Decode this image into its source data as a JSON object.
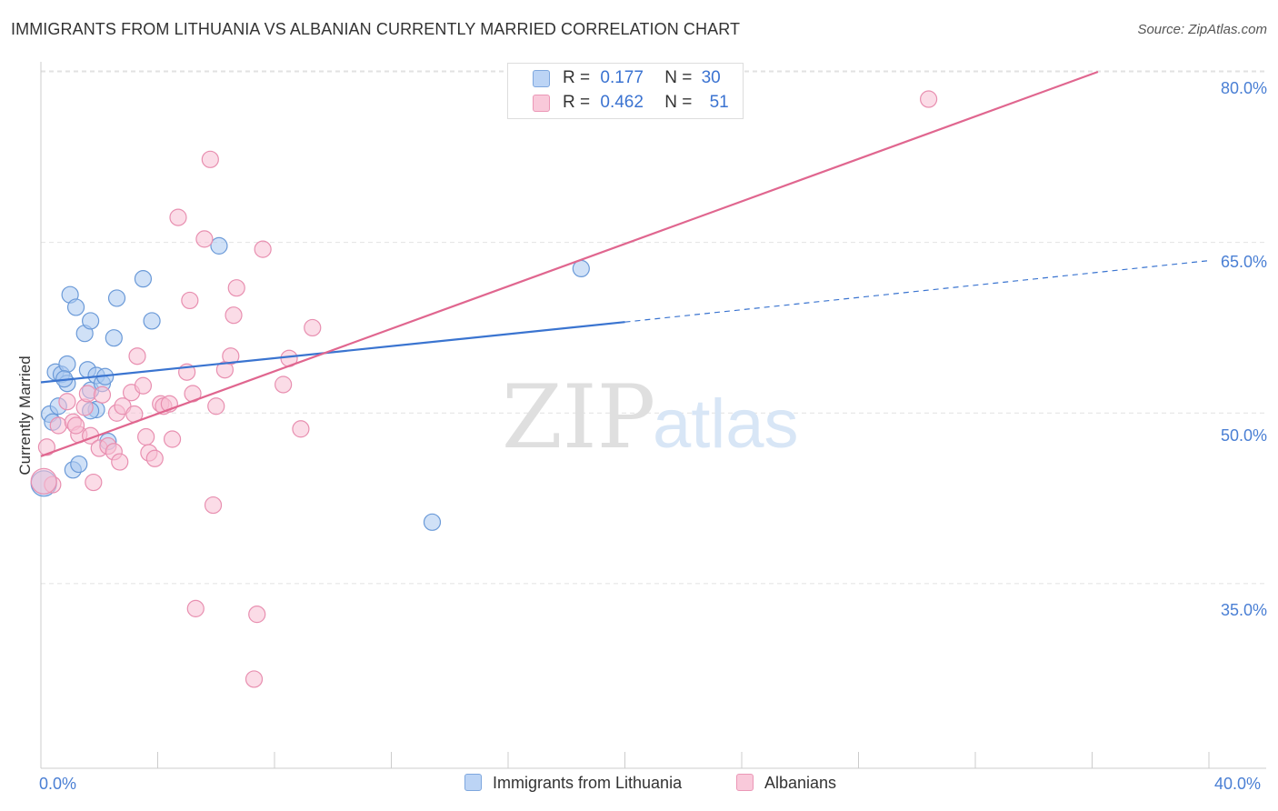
{
  "chart_data": {
    "type": "scatter",
    "title": "IMMIGRANTS FROM LITHUANIA VS ALBANIAN CURRENTLY MARRIED CORRELATION CHART",
    "source": "Source: ZipAtlas.com",
    "xlabel": "",
    "ylabel": "Currently Married",
    "xlim": [
      0,
      40
    ],
    "ylim": [
      20,
      82
    ],
    "x_tick_labels": [
      "0.0%",
      "40.0%"
    ],
    "y_ticks": [
      35,
      50,
      65,
      80
    ],
    "y_tick_labels": [
      "35.0%",
      "50.0%",
      "65.0%",
      "80.0%"
    ],
    "grid": true,
    "watermark": {
      "zip": "ZIP",
      "atlas": "atlas"
    },
    "legend_stats": [
      {
        "r_label": "R =",
        "r_value": "0.177",
        "n_label": "N =",
        "n_value": "30"
      },
      {
        "r_label": "R =",
        "r_value": "0.462",
        "n_label": "N =",
        "n_value": "51"
      }
    ],
    "series": [
      {
        "name": "Immigrants from Lithuania",
        "color": "#aac8f0",
        "stroke": "#6b9ad8",
        "line_color": "#3a74d0",
        "trend": {
          "x0": 0.0,
          "y0": 52.7,
          "x1": 20.0,
          "y1": 58.0,
          "dashed_to_x": 40.0,
          "dashed_to_y": 63.4
        },
        "points": [
          [
            0.3,
            49.9
          ],
          [
            0.6,
            50.6
          ],
          [
            0.4,
            49.2
          ],
          [
            0.5,
            53.6
          ],
          [
            0.7,
            53.4
          ],
          [
            0.9,
            54.3
          ],
          [
            0.9,
            52.6
          ],
          [
            0.8,
            53.0
          ],
          [
            1.0,
            60.4
          ],
          [
            1.2,
            59.3
          ],
          [
            1.5,
            57.0
          ],
          [
            1.7,
            58.1
          ],
          [
            1.6,
            53.8
          ],
          [
            1.7,
            52.0
          ],
          [
            1.9,
            53.3
          ],
          [
            2.1,
            52.6
          ],
          [
            2.2,
            53.2
          ],
          [
            2.5,
            56.6
          ],
          [
            2.6,
            60.1
          ],
          [
            3.5,
            61.8
          ],
          [
            3.8,
            58.1
          ],
          [
            1.1,
            45.0
          ],
          [
            1.3,
            45.5
          ],
          [
            1.9,
            50.3
          ],
          [
            1.7,
            50.2
          ],
          [
            2.3,
            47.5
          ],
          [
            6.1,
            64.7
          ],
          [
            0.1,
            43.8
          ],
          [
            13.4,
            40.4
          ],
          [
            18.5,
            62.7
          ]
        ]
      },
      {
        "name": "Albanians",
        "color": "#f7bfd3",
        "stroke": "#e88fb0",
        "line_color": "#e0668f",
        "trend": {
          "x0": 0.0,
          "y0": 46.2,
          "x1": 36.2,
          "y1": 80.0
        },
        "points": [
          [
            0.2,
            47.0
          ],
          [
            0.4,
            43.7
          ],
          [
            0.6,
            48.9
          ],
          [
            0.9,
            51.0
          ],
          [
            1.1,
            49.2
          ],
          [
            1.3,
            48.1
          ],
          [
            1.5,
            50.5
          ],
          [
            1.6,
            51.7
          ],
          [
            1.7,
            48.0
          ],
          [
            1.8,
            43.9
          ],
          [
            2.0,
            46.9
          ],
          [
            2.1,
            51.6
          ],
          [
            2.3,
            47.1
          ],
          [
            2.5,
            46.6
          ],
          [
            2.6,
            50.0
          ],
          [
            2.7,
            45.7
          ],
          [
            2.8,
            50.6
          ],
          [
            3.1,
            51.8
          ],
          [
            3.2,
            49.9
          ],
          [
            3.3,
            55.0
          ],
          [
            3.5,
            52.4
          ],
          [
            3.6,
            47.9
          ],
          [
            3.7,
            46.5
          ],
          [
            3.9,
            46.0
          ],
          [
            4.1,
            50.8
          ],
          [
            4.2,
            50.6
          ],
          [
            4.4,
            50.8
          ],
          [
            4.5,
            47.7
          ],
          [
            4.7,
            67.2
          ],
          [
            5.0,
            53.6
          ],
          [
            5.1,
            59.9
          ],
          [
            5.2,
            51.7
          ],
          [
            5.6,
            65.3
          ],
          [
            5.8,
            72.3
          ],
          [
            5.9,
            41.9
          ],
          [
            6.0,
            50.6
          ],
          [
            6.3,
            53.8
          ],
          [
            6.5,
            55.0
          ],
          [
            6.6,
            58.6
          ],
          [
            6.7,
            61.0
          ],
          [
            7.6,
            64.4
          ],
          [
            8.3,
            52.5
          ],
          [
            8.5,
            54.8
          ],
          [
            8.9,
            48.6
          ],
          [
            9.3,
            57.5
          ],
          [
            5.3,
            32.8
          ],
          [
            7.4,
            32.3
          ],
          [
            7.3,
            26.6
          ],
          [
            0.1,
            44.0
          ],
          [
            30.4,
            77.6
          ],
          [
            1.2,
            48.9
          ]
        ]
      }
    ]
  }
}
